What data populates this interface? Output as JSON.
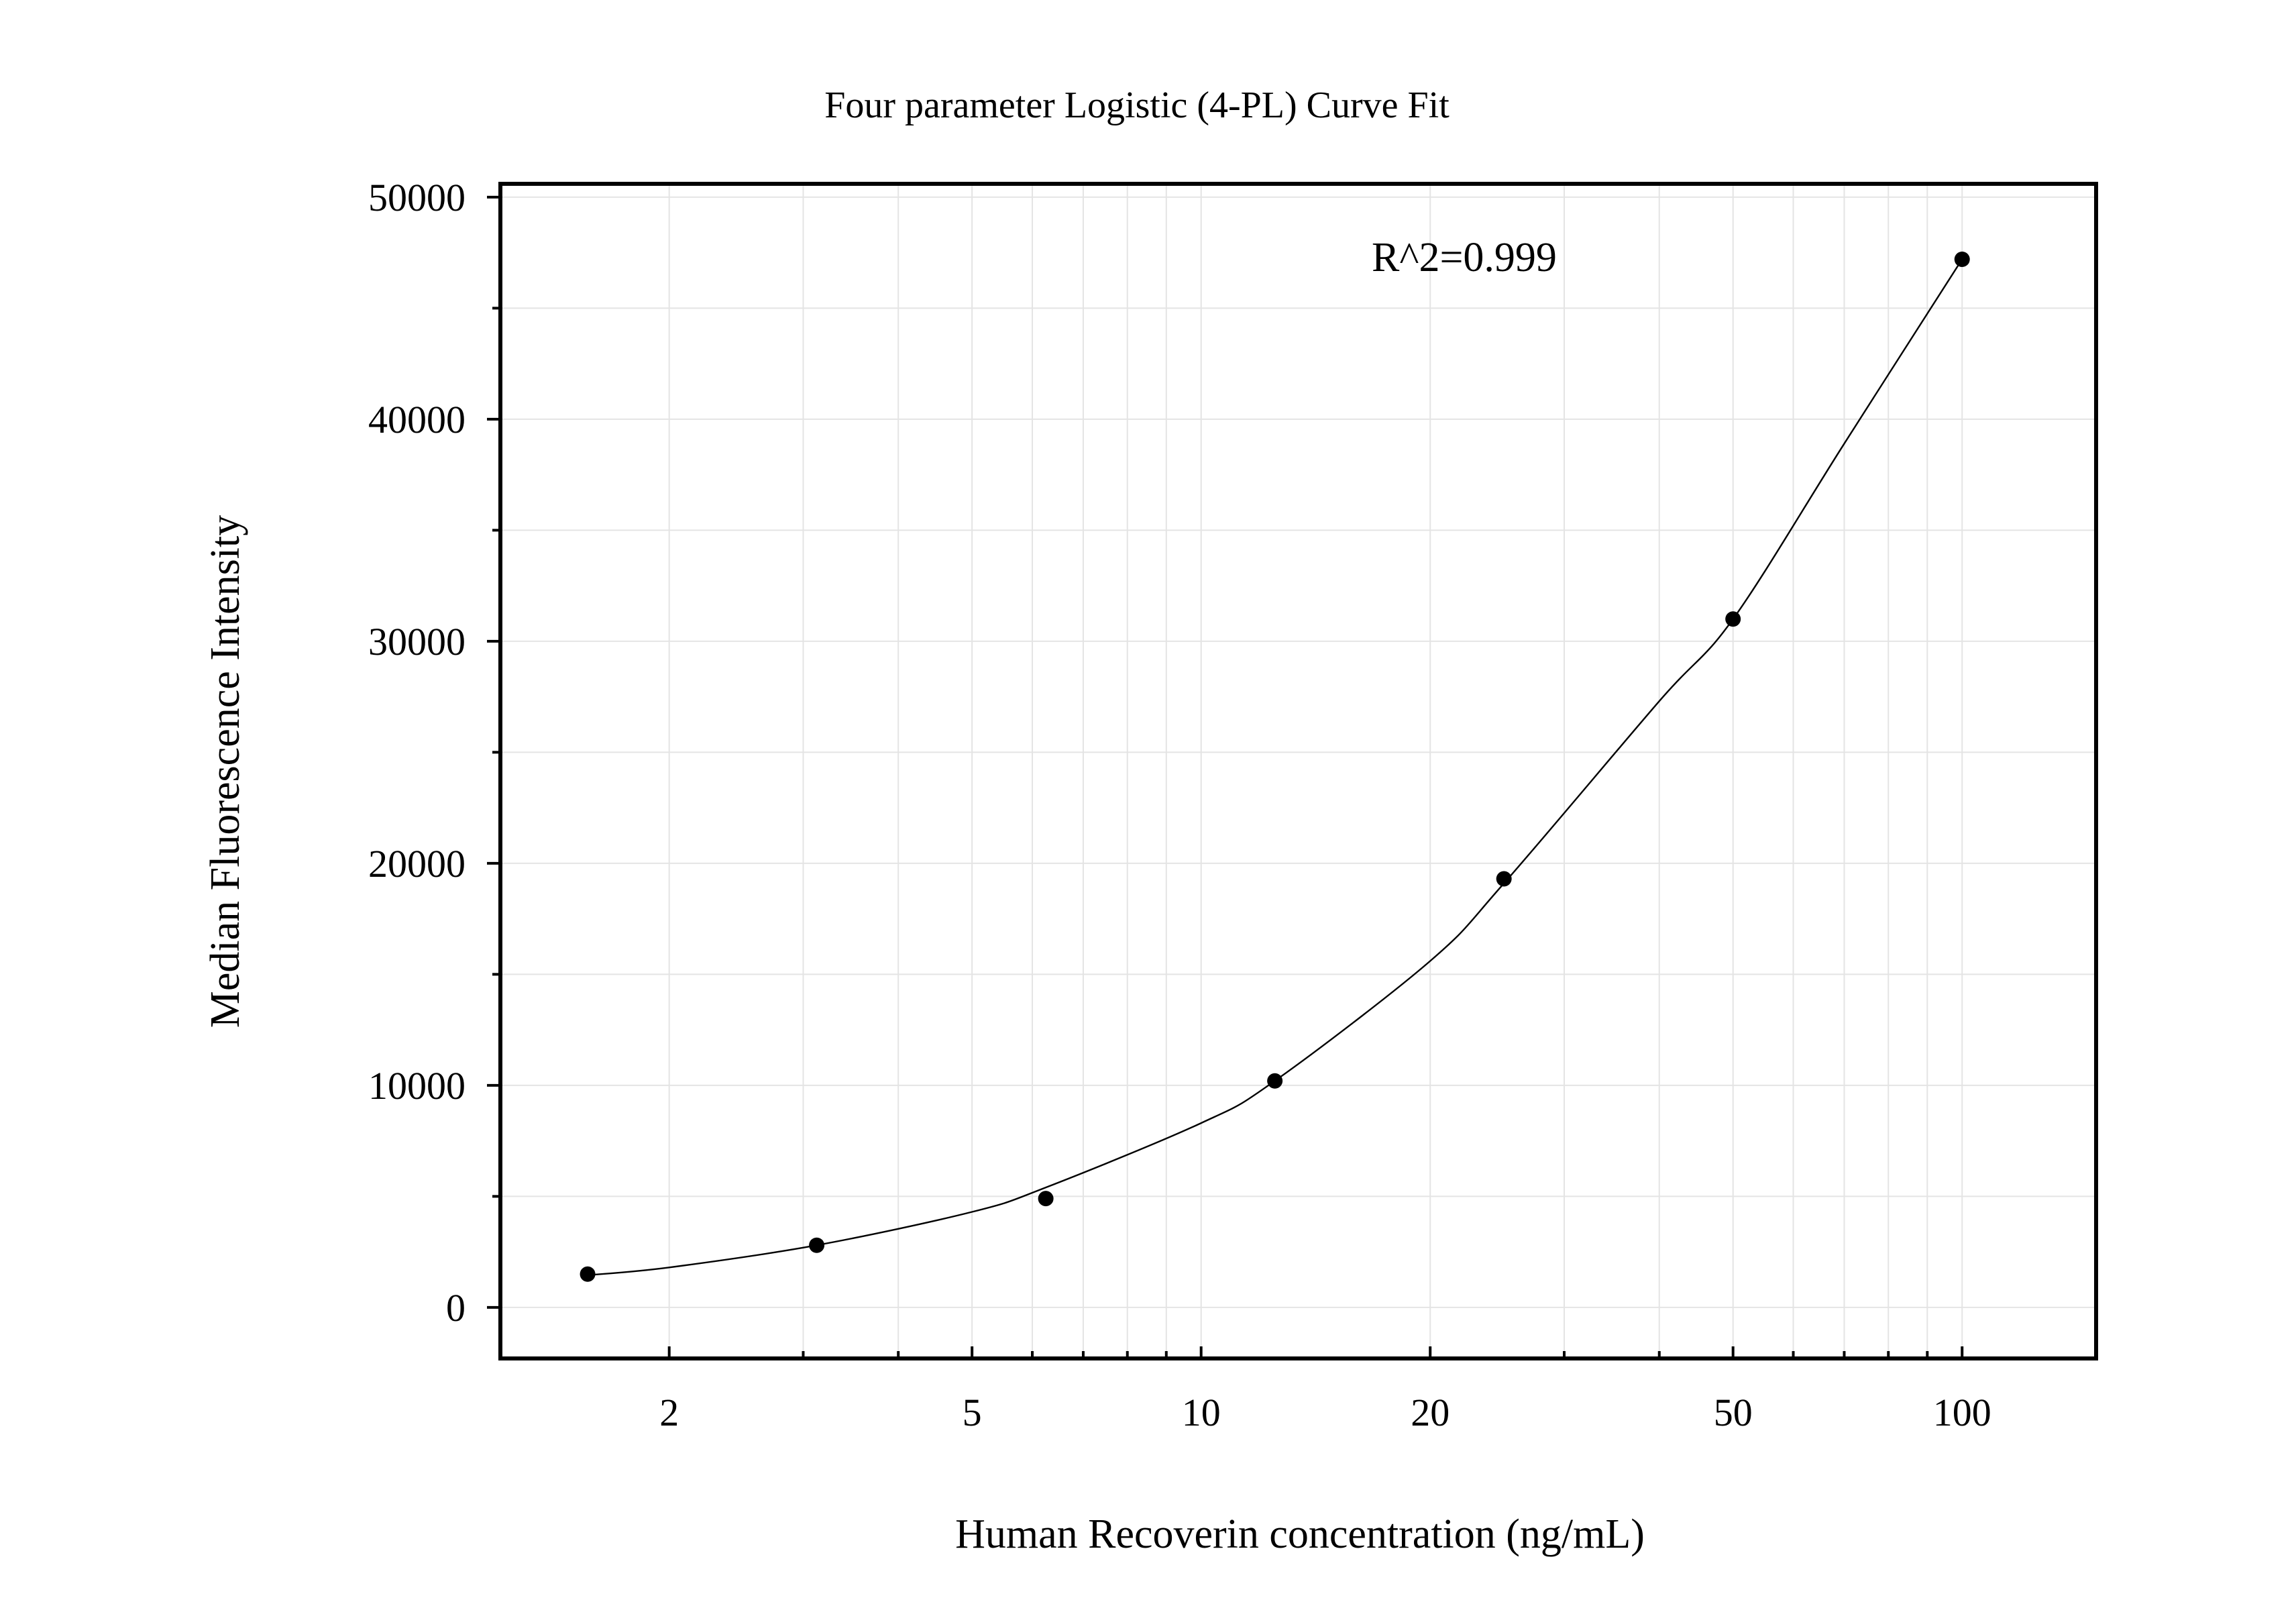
{
  "chart_data": {
    "type": "scatter",
    "title": "Four parameter Logistic (4-PL) Curve Fit",
    "xlabel": "Human Recoverin concentration (ng/mL)",
    "ylabel": "Median Fluorescence Intensity",
    "annotation": "R^2=0.999",
    "x_scale": "log",
    "xlim": [
      1.2,
      150
    ],
    "ylim": [
      -2300,
      50600
    ],
    "x_ticks": [
      2,
      5,
      10,
      20,
      50,
      100
    ],
    "x_tick_labels": [
      "2",
      "5",
      "10",
      "20",
      "50",
      "100"
    ],
    "y_ticks": [
      0,
      10000,
      20000,
      30000,
      40000,
      50000
    ],
    "y_tick_labels": [
      "0",
      "10000",
      "20000",
      "30000",
      "40000",
      "50000"
    ],
    "grid": true,
    "points": [
      {
        "x": 1.5625,
        "y": 1500
      },
      {
        "x": 3.125,
        "y": 2800
      },
      {
        "x": 6.25,
        "y": 4900
      },
      {
        "x": 12.5,
        "y": 10200
      },
      {
        "x": 25,
        "y": 19300
      },
      {
        "x": 50,
        "y": 31000
      },
      {
        "x": 100,
        "y": 47200
      }
    ],
    "fit_curve": [
      {
        "x": 1.5625,
        "y": 1450
      },
      {
        "x": 2,
        "y": 1800
      },
      {
        "x": 3.125,
        "y": 2800
      },
      {
        "x": 5,
        "y": 4300
      },
      {
        "x": 6.25,
        "y": 5400
      },
      {
        "x": 10,
        "y": 8300
      },
      {
        "x": 12.5,
        "y": 10200
      },
      {
        "x": 20,
        "y": 15600
      },
      {
        "x": 25,
        "y": 19100
      },
      {
        "x": 40,
        "y": 27300
      },
      {
        "x": 50,
        "y": 31000
      },
      {
        "x": 70,
        "y": 38900
      },
      {
        "x": 100,
        "y": 47200
      }
    ]
  }
}
